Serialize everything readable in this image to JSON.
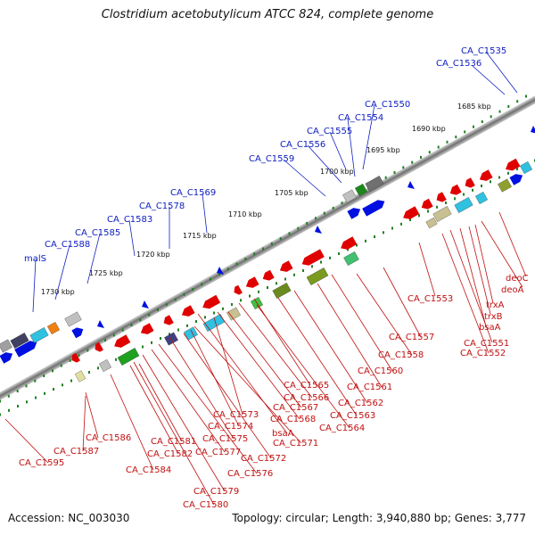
{
  "title": "Clostridium acetobutylicum ATCC 824, complete genome",
  "accession_text": "Accession: NC_003030",
  "summary_text": "Topology: circular; Length: 3,940,880 bp; Genes: 3,777",
  "kbp_ticks": [
    "1685 kbp",
    "1690 kbp",
    "1695 kbp",
    "1700 kbp",
    "1705 kbp",
    "1710 kbp",
    "1715 kbp",
    "1720 kbp",
    "1725 kbp",
    "1730 kbp"
  ],
  "outer_labels": [
    "CA_C1535",
    "CA_C1536",
    "CA_C1550",
    "CA_C1554",
    "CA_C1555",
    "CA_C1556",
    "CA_C1559",
    "CA_C1569",
    "CA_C1578",
    "CA_C1583",
    "CA_C1585",
    "CA_C1588",
    "malS"
  ],
  "inner_labels": [
    "deoC",
    "deoA",
    "trxA",
    "trxB",
    "bsaA",
    "CA_C1551",
    "CA_C1552",
    "CA_C1553",
    "CA_C1557",
    "CA_C1558",
    "CA_C1560",
    "CA_C1561",
    "CA_C1562",
    "CA_C1563",
    "CA_C1564",
    "CA_C1565",
    "CA_C1566",
    "CA_C1567",
    "CA_C1568",
    "bsaA",
    "CA_C1571",
    "CA_C1572",
    "CA_C1573",
    "CA_C1574",
    "CA_C1575",
    "CA_C1576",
    "CA_C1577",
    "CA_C1579",
    "CA_C1580",
    "CA_C1581",
    "CA_C1582",
    "CA_C1584",
    "CA_C1586",
    "CA_C1587",
    "CA_C1595"
  ],
  "colors": {
    "outer_label": "#1020c0",
    "inner_label": "#c01010",
    "forward_gene": "#0010e0",
    "reverse_gene": "#e00000",
    "backbone": "#808080",
    "tick_dots": "#208020"
  }
}
